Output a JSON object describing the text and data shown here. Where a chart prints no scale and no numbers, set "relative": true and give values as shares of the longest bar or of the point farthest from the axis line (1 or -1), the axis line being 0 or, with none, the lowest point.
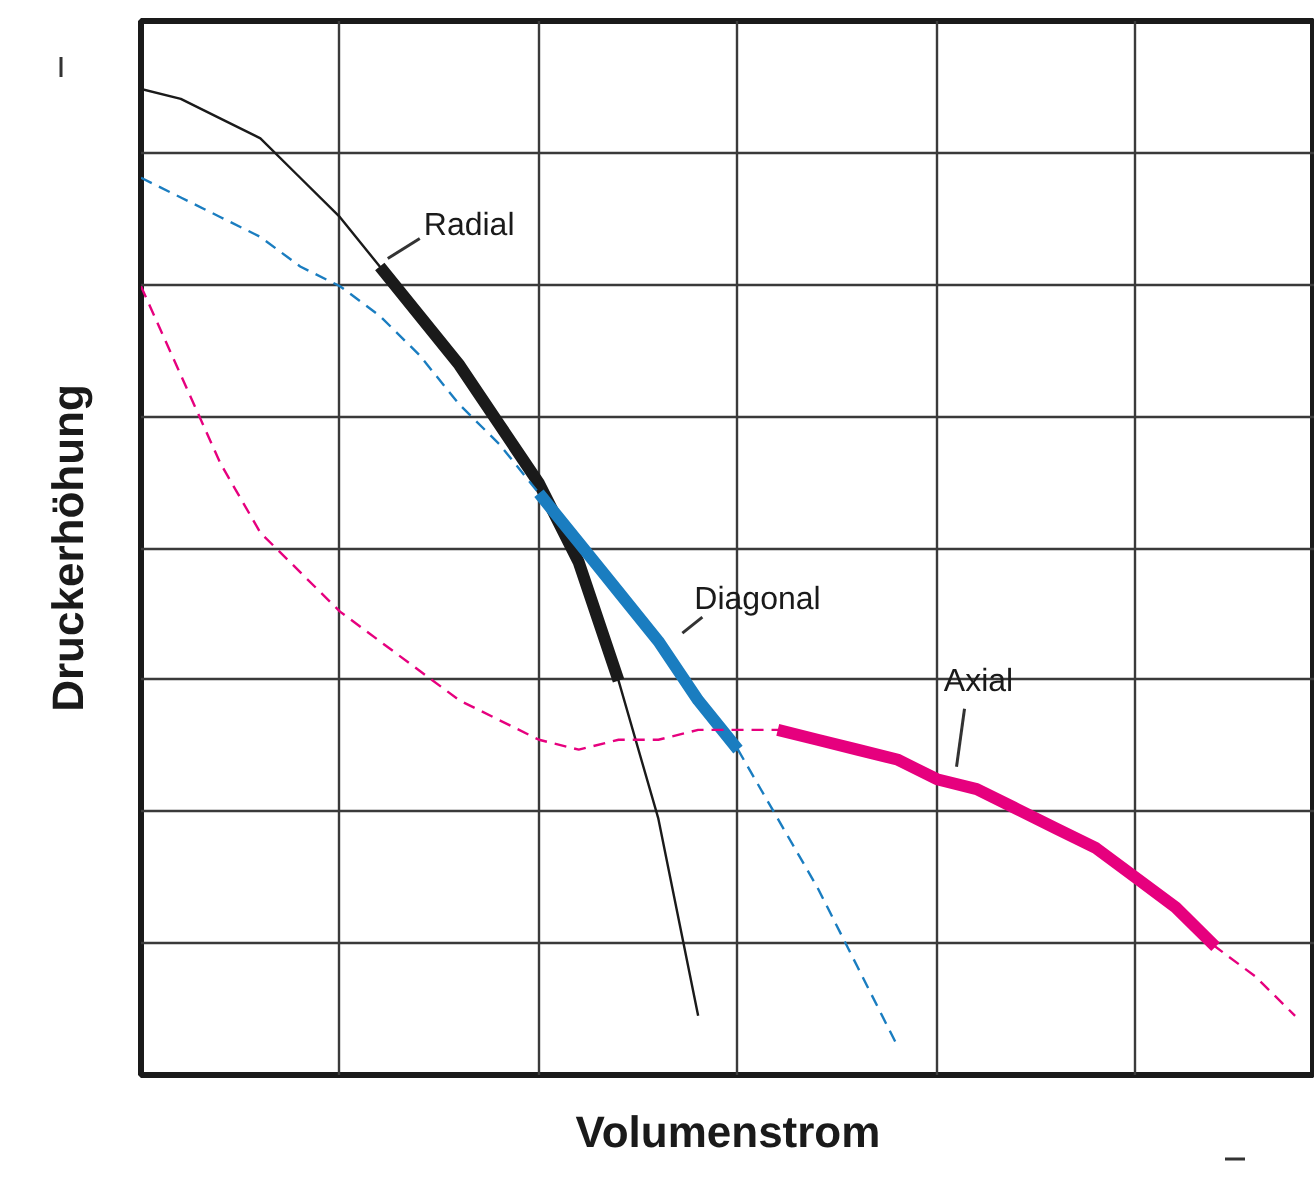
{
  "chart_data": {
    "type": "line",
    "relative": true,
    "xlabel": "Volumenstrom",
    "ylabel": "Druckerhöhung",
    "grid": true,
    "categories": [
      null,
      null,
      null,
      null,
      null,
      null,
      null,
      null,
      null,
      null,
      null,
      null,
      null,
      null,
      null,
      null,
      null,
      null,
      null,
      null,
      null,
      null,
      null,
      null,
      null,
      null,
      null,
      null,
      null,
      null
    ],
    "series": [
      {
        "color": "#1a1a1a",
        "line_style": "solid",
        "values": [
          1.0,
          0.99,
          0.97,
          0.95,
          0.91,
          0.87,
          0.82,
          0.77,
          0.72,
          0.66,
          0.6,
          0.52,
          0.4,
          0.26,
          0.06,
          null,
          null,
          null,
          null,
          null,
          null,
          null,
          null,
          null,
          null,
          null,
          null,
          null,
          null,
          null
        ]
      },
      {
        "name": "Radial",
        "color": "#1a1a1a",
        "line_style": "solid",
        "values": [
          null,
          null,
          null,
          null,
          null,
          null,
          0.82,
          0.77,
          0.72,
          0.66,
          0.6,
          0.52,
          0.4,
          null,
          null,
          null,
          null,
          null,
          null,
          null,
          null,
          null,
          null,
          null,
          null,
          null,
          null,
          null,
          null,
          null
        ]
      },
      {
        "color": "#1a7dc0",
        "line_style": "dashed",
        "values": [
          0.91,
          0.89,
          0.87,
          0.85,
          0.82,
          0.8,
          0.77,
          0.73,
          0.68,
          0.64,
          0.59,
          0.54,
          0.49,
          0.44,
          0.38,
          0.33,
          0.26,
          0.19,
          0.11,
          0.03,
          null,
          null,
          null,
          null,
          null,
          null,
          null,
          null,
          null,
          null
        ]
      },
      {
        "name": "Diagonal",
        "color": "#1a7dc0",
        "line_style": "solid",
        "values": [
          null,
          null,
          null,
          null,
          null,
          null,
          null,
          null,
          null,
          null,
          0.59,
          0.54,
          0.49,
          0.44,
          0.38,
          0.33,
          null,
          null,
          null,
          null,
          null,
          null,
          null,
          null,
          null,
          null,
          null,
          null,
          null,
          null
        ]
      },
      {
        "color": "#e6007e",
        "line_style": "dashed",
        "values": [
          0.8,
          0.71,
          0.62,
          0.55,
          0.51,
          0.47,
          0.44,
          0.41,
          0.38,
          0.36,
          0.34,
          0.33,
          0.34,
          0.34,
          0.35,
          0.35,
          0.35,
          0.34,
          0.33,
          0.32,
          0.3,
          0.29,
          0.27,
          0.25,
          0.23,
          0.2,
          0.17,
          0.13,
          0.1,
          0.06
        ]
      },
      {
        "name": "Axial",
        "color": "#e6007e",
        "line_style": "solid",
        "values": [
          null,
          null,
          null,
          null,
          null,
          null,
          null,
          null,
          null,
          null,
          null,
          null,
          null,
          null,
          null,
          null,
          0.35,
          0.34,
          0.33,
          0.32,
          0.3,
          0.29,
          0.27,
          0.25,
          0.23,
          0.2,
          0.17,
          0.13,
          null,
          null
        ]
      }
    ]
  }
}
